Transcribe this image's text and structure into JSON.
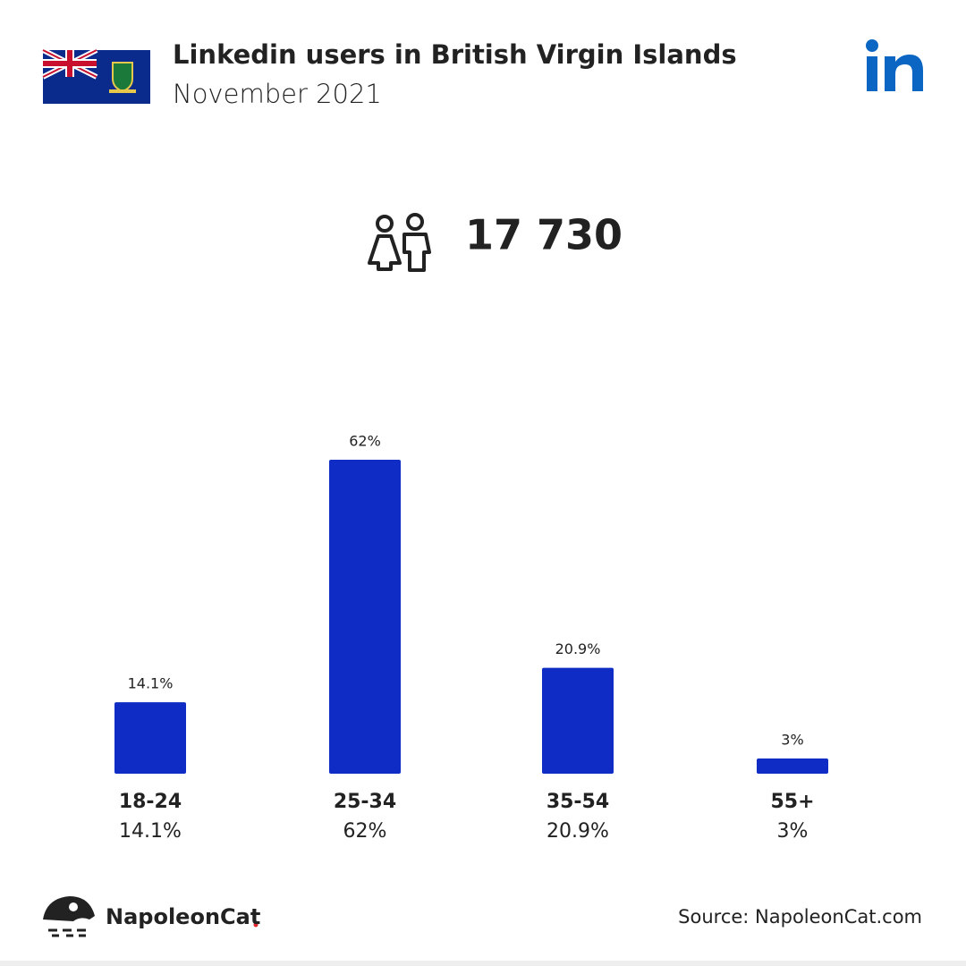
{
  "chart_data": {
    "type": "bar",
    "title": "Linkedin users in British Virgin Islands",
    "subtitle": "November 2021",
    "total": "17 730",
    "categories": [
      "18-24",
      "25-34",
      "35-54",
      "55+"
    ],
    "values": [
      14.1,
      62,
      20.9,
      3
    ],
    "value_labels": [
      "14.1%",
      "62%",
      "20.9%",
      "3%"
    ],
    "color": "#0f2cc4",
    "brand": "NapoleonCat",
    "source": "Source: NapoleonCat.com"
  }
}
